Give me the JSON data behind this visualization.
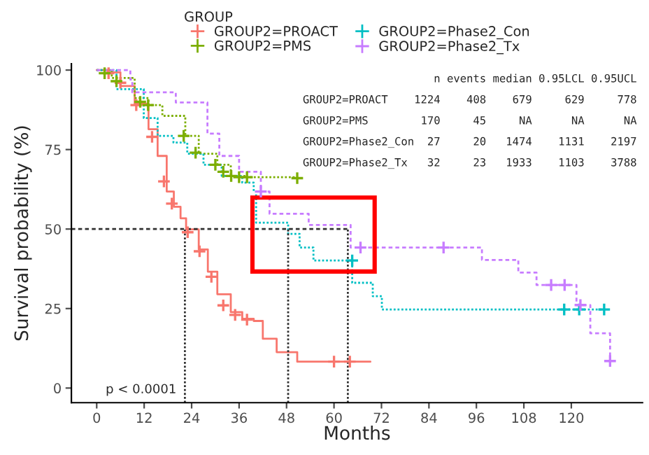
{
  "chart_data": {
    "type": "step",
    "xlabel": "Months",
    "ylabel": "Survival probability (%)",
    "legend_title": "GROUP",
    "xlim": [
      -6.4,
      138
    ],
    "ylim": [
      -4.6,
      102
    ],
    "xticks": [
      0,
      12,
      24,
      36,
      48,
      60,
      72,
      84,
      96,
      108,
      120
    ],
    "yticks": [
      0,
      25,
      50,
      75,
      100
    ],
    "grid": false,
    "legend": "top",
    "series": [
      {
        "name": "GROUP2=PROACT",
        "color": "#f8766d",
        "line_style": "solid",
        "marker": "none",
        "x": [
          0,
          2.7,
          6,
          9.6,
          13.1,
          15.4,
          17.7,
          19.5,
          21.2,
          22.6,
          25.8,
          28.1,
          30.5,
          33.9,
          36.8,
          39.7,
          42.0,
          45.5,
          50.7,
          69.2
        ],
        "values": [
          100,
          99.3,
          95,
          89.4,
          81.4,
          73,
          61.8,
          57,
          53.4,
          49.9,
          43.6,
          36.6,
          29.5,
          23.9,
          21.8,
          21.1,
          15.5,
          11.3,
          8.3,
          8.3
        ]
      },
      {
        "name": "GROUP2=PMS",
        "color": "#7cae00",
        "line_style": "dotted",
        "marker": "none",
        "x": [
          0,
          3.8,
          9.6,
          13.1,
          16.6,
          22.4,
          25.8,
          30.5,
          33.9,
          37.4,
          50.7
        ],
        "values": [
          100,
          97.5,
          91.2,
          89,
          85.6,
          79.3,
          73.7,
          70.2,
          66.7,
          66.3,
          66
        ]
      },
      {
        "name": "GROUP2=Phase2_Con",
        "color": "#00bfc4",
        "line_style": "dotted",
        "marker": "none",
        "x": [
          0,
          5.0,
          11.9,
          15.4,
          19.4,
          22.9,
          27.0,
          31.6,
          36.8,
          39.7,
          40.3,
          48.4,
          51.3,
          54.8,
          64.6,
          69.8,
          72.1,
          128.3
        ],
        "values": [
          100,
          94,
          84.9,
          79.3,
          77.2,
          73.7,
          70.2,
          66.7,
          64.6,
          61.8,
          52,
          48.5,
          44.2,
          40.1,
          33.1,
          28.9,
          24.7,
          24.7
        ]
      },
      {
        "name": "GROUP2=Phase2_Tx",
        "color": "#c77cff",
        "line_style": "dashed",
        "marker": "none",
        "x": [
          0,
          8.5,
          9.0,
          20,
          28,
          31,
          36,
          41.5,
          43.7,
          53.6,
          64.2,
          97.4,
          106.6,
          111.2,
          121.3,
          124.8,
          129.8
        ],
        "values": [
          100,
          97,
          93,
          89.8,
          80,
          73,
          68,
          61.8,
          54.8,
          51.3,
          44.2,
          40.3,
          36.3,
          32.4,
          26.1,
          17.2,
          8.5
        ]
      },
      {
        "type": "scatter",
        "marker": "cross",
        "color": "#f8766d",
        "x": [
          3,
          6,
          10,
          14,
          17,
          19,
          23,
          26,
          29,
          32,
          35,
          38,
          60,
          64
        ],
        "values": [
          99,
          96,
          89,
          79,
          65,
          58,
          49,
          43,
          35,
          26,
          23,
          21.5,
          8.3,
          8.3
        ]
      },
      {
        "type": "scatter",
        "marker": "cross",
        "color": "#7cae00",
        "x": [
          2,
          5,
          11,
          13,
          22,
          25,
          30,
          32,
          34,
          36,
          38,
          50.7
        ],
        "values": [
          99,
          96.5,
          90,
          89,
          79.3,
          74,
          70.2,
          68,
          66.7,
          66.3,
          66.3,
          66
        ]
      },
      {
        "type": "scatter",
        "marker": "cross",
        "color": "#00bfc4",
        "x": [
          64.6,
          118.2,
          122,
          128.3
        ],
        "values": [
          40.1,
          24.7,
          24.7,
          24.7
        ]
      },
      {
        "type": "scatter",
        "marker": "cross",
        "color": "#c77cff",
        "x": [
          41.5,
          66.7,
          87.7,
          114.9,
          118.3,
          122.3,
          129.8
        ],
        "values": [
          61.8,
          44.2,
          44.2,
          32.4,
          32.4,
          26.1,
          8.5
        ]
      }
    ],
    "ref_lines": [
      {
        "axis": "y",
        "value": 50,
        "line_style": "dashed",
        "color": "#333333"
      },
      {
        "axis": "x",
        "value": 22.3,
        "line_style": "dotted",
        "color": "#333333"
      },
      {
        "axis": "x",
        "value": 48.4,
        "line_style": "dotted",
        "color": "#333333"
      },
      {
        "axis": "x",
        "value": 63.5,
        "line_style": "dotted",
        "color": "#333333"
      }
    ],
    "annotations": [
      "                   n events median 0.95LCL 0.95UCL",
      "GROUP2=PROACT    1224    408    679     629     778",
      "GROUP2=PMS        170     45     NA      NA      NA",
      "GROUP2=Phase2_Con  27     20   1474    1131    2197",
      "GROUP2=Phase2_Tx   32     23   1933    1103    3788",
      "p < 0.0001"
    ]
  }
}
